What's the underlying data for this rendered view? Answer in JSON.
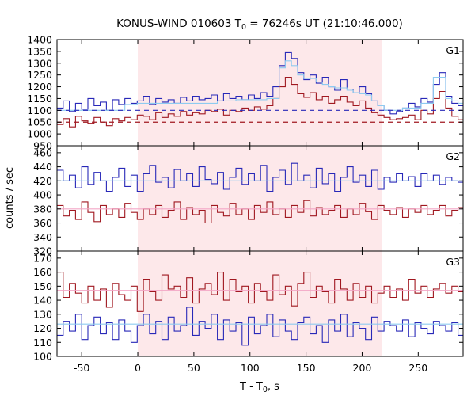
{
  "chart_data": {
    "type": "line",
    "title": "KONUS-WIND 010603 T",
    "title_sub": "0",
    "title_suffix": " = 76246s UT (21:10:46.000)",
    "xlabel": "T - T",
    "xlabel_sub": "0",
    "xlabel_suffix": ", s",
    "ylabel": "counts / sec",
    "xlim": [
      -72,
      290
    ],
    "xticks": [
      -50,
      0,
      50,
      100,
      150,
      200,
      250
    ],
    "highlight": {
      "x0": 0,
      "x1": 218,
      "color": "#fde8ea"
    },
    "colors": {
      "blue": "#2828b8",
      "red": "#a01820",
      "light_blue": "#8ecbf0",
      "pink": "#f3a6c6"
    },
    "bin_edges": [
      -72,
      -66.5,
      -61,
      -55.5,
      -50,
      -44.5,
      -39,
      -33.5,
      -28,
      -22.5,
      -17,
      -11.5,
      -6,
      -0.5,
      5,
      10.5,
      16,
      21.5,
      27,
      32.5,
      38,
      43.5,
      49,
      54.5,
      60,
      65.5,
      71,
      76.5,
      82,
      87.5,
      93,
      98.5,
      104,
      109.5,
      115,
      120.5,
      126,
      131.5,
      137,
      142.5,
      148,
      153.5,
      159,
      164.5,
      170,
      175.5,
      181,
      186.5,
      192,
      197.5,
      203,
      208.5,
      214,
      219.5,
      225,
      230.5,
      236,
      241.5,
      247,
      252.5,
      258,
      263.5,
      269,
      274.5,
      280,
      285.5,
      290
    ],
    "panels": [
      {
        "label": "G1",
        "ylim": [
          950,
          1400
        ],
        "yticks": [
          950,
          1000,
          1050,
          1100,
          1150,
          1200,
          1250,
          1300,
          1350,
          1400
        ],
        "series": [
          {
            "color": "blue",
            "values": [
              1110,
              1140,
              1095,
              1130,
              1105,
              1150,
              1120,
              1135,
              1100,
              1145,
              1125,
              1150,
              1130,
              1140,
              1160,
              1125,
              1150,
              1135,
              1145,
              1130,
              1155,
              1140,
              1160,
              1145,
              1150,
              1165,
              1140,
              1170,
              1150,
              1160,
              1145,
              1165,
              1150,
              1175,
              1160,
              1200,
              1290,
              1345,
              1320,
              1260,
              1230,
              1250,
              1215,
              1240,
              1200,
              1185,
              1230,
              1190,
              1175,
              1200,
              1170,
              1140,
              1120,
              1100,
              1085,
              1095,
              1110,
              1130,
              1115,
              1150,
              1135,
              1210,
              1260,
              1160,
              1130,
              1120
            ]
          },
          {
            "color": "red",
            "values": [
              1040,
              1065,
              1030,
              1075,
              1055,
              1045,
              1070,
              1050,
              1035,
              1065,
              1055,
              1070,
              1060,
              1080,
              1075,
              1060,
              1090,
              1070,
              1085,
              1075,
              1095,
              1080,
              1090,
              1085,
              1100,
              1095,
              1105,
              1080,
              1100,
              1095,
              1110,
              1100,
              1115,
              1105,
              1120,
              1150,
              1200,
              1240,
              1210,
              1170,
              1155,
              1175,
              1145,
              1160,
              1130,
              1145,
              1160,
              1135,
              1120,
              1140,
              1110,
              1090,
              1080,
              1070,
              1060,
              1065,
              1070,
              1080,
              1060,
              1100,
              1085,
              1150,
              1180,
              1110,
              1075,
              1060
            ]
          },
          {
            "color": "light_blue",
            "values": [
              1100,
              1100,
              1100,
              1100,
              1100,
              1100,
              1100,
              1100,
              1100,
              1100,
              1100,
              1125,
              1125,
              1130,
              1130,
              1130,
              1130,
              1130,
              1130,
              1130,
              1130,
              1130,
              1130,
              1130,
              1130,
              1130,
              1140,
              1140,
              1140,
              1145,
              1145,
              1145,
              1145,
              1145,
              1150,
              1150,
              1280,
              1310,
              1290,
              1250,
              1235,
              1235,
              1220,
              1210,
              1200,
              1195,
              1195,
              1185,
              1175,
              1170,
              1165,
              1140,
              1120,
              1100,
              1100,
              1100,
              1110,
              1110,
              1110,
              1130,
              1130,
              1240,
              1240,
              1150,
              1140,
              1130
            ]
          }
        ],
        "reference_lines": [
          {
            "color": "blue",
            "y": 1100
          },
          {
            "color": "red",
            "y": 1050
          }
        ]
      },
      {
        "label": "G2",
        "ylim": [
          320,
          470
        ],
        "yticks": [
          320,
          340,
          360,
          380,
          400,
          420,
          440,
          460
        ],
        "series": [
          {
            "color": "blue",
            "values": [
              435,
              420,
              428,
              410,
              440,
              415,
              432,
              420,
              405,
              425,
              438,
              412,
              428,
              405,
              430,
              442,
              418,
              425,
              410,
              436,
              420,
              430,
              412,
              440,
              422,
              416,
              432,
              408,
              425,
              438,
              415,
              430,
              420,
              442,
              405,
              425,
              435,
              415,
              445,
              420,
              428,
              410,
              438,
              416,
              430,
              405,
              425,
              440,
              418,
              428,
              412,
              435,
              408,
              425,
              418,
              430,
              420,
              426,
              412,
              430,
              420,
              428,
              415,
              425,
              420,
              418
            ]
          },
          {
            "color": "red",
            "values": [
              385,
              370,
              378,
              365,
              390,
              375,
              362,
              385,
              372,
              380,
              368,
              388,
              375,
              365,
              380,
              372,
              385,
              368,
              378,
              390,
              365,
              382,
              372,
              378,
              360,
              385,
              375,
              370,
              388,
              372,
              380,
              365,
              385,
              375,
              390,
              372,
              380,
              368,
              385,
              375,
              392,
              370,
              382,
              372,
              378,
              385,
              368,
              380,
              372,
              388,
              376,
              365,
              385,
              378,
              372,
              382,
              368,
              380,
              375,
              385,
              372,
              378,
              385,
              370,
              378,
              382
            ]
          },
          {
            "color": "light_blue",
            "values": [
              420,
              420,
              420,
              420,
              420,
              420,
              420,
              420,
              420,
              420,
              420,
              420,
              420,
              420,
              420,
              420,
              420,
              420,
              420,
              420,
              420,
              420,
              420,
              420,
              420,
              420,
              420,
              420,
              420,
              420,
              420,
              420,
              420,
              420,
              420,
              420,
              420,
              420,
              420,
              420,
              420,
              420,
              420,
              420,
              420,
              420,
              420,
              420,
              420,
              420,
              420,
              420,
              420,
              420,
              420,
              420,
              420,
              420,
              420,
              420,
              420,
              420,
              420,
              420,
              420,
              420
            ]
          },
          {
            "color": "pink",
            "values": [
              380,
              380,
              380,
              380,
              380,
              380,
              380,
              380,
              380,
              380,
              380,
              380,
              380,
              380,
              380,
              380,
              380,
              380,
              380,
              380,
              380,
              380,
              380,
              380,
              380,
              380,
              380,
              380,
              380,
              380,
              380,
              380,
              380,
              380,
              380,
              380,
              380,
              380,
              380,
              380,
              380,
              380,
              380,
              380,
              380,
              380,
              380,
              380,
              380,
              380,
              380,
              380,
              380,
              380,
              380,
              380,
              380,
              380,
              380,
              380,
              380,
              380,
              380,
              380,
              380,
              380
            ]
          }
        ],
        "reference_lines": []
      },
      {
        "label": "G3",
        "ylim": [
          100,
          175
        ],
        "yticks": [
          100,
          110,
          120,
          130,
          140,
          150,
          160,
          170
        ],
        "series": [
          {
            "color": "red",
            "values": [
              160,
              142,
              152,
              145,
              138,
              150,
              140,
              148,
              135,
              152,
              144,
              140,
              150,
              132,
              155,
              146,
              140,
              158,
              148,
              150,
              142,
              156,
              138,
              148,
              152,
              144,
              160,
              140,
              155,
              146,
              150,
              138,
              152,
              146,
              140,
              158,
              144,
              150,
              136,
              152,
              160,
              142,
              150,
              146,
              138,
              155,
              148,
              140,
              152,
              142,
              150,
              138,
              145,
              150,
              142,
              148,
              140,
              155,
              145,
              150,
              142,
              148,
              152,
              145,
              150,
              146
            ]
          },
          {
            "color": "blue",
            "values": [
              115,
              125,
              118,
              130,
              112,
              122,
              128,
              116,
              124,
              112,
              126,
              118,
              110,
              122,
              130,
              116,
              125,
              112,
              128,
              118,
              122,
              135,
              115,
              125,
              120,
              130,
              112,
              126,
              118,
              124,
              108,
              128,
              116,
              122,
              130,
              114,
              126,
              118,
              112,
              124,
              128,
              116,
              122,
              110,
              126,
              118,
              130,
              114,
              124,
              120,
              112,
              128,
              118,
              125,
              122,
              118,
              126,
              114,
              124,
              120,
              116,
              125,
              122,
              118,
              124,
              115
            ]
          },
          {
            "color": "light_blue",
            "values": [
              123,
              123,
              123,
              123,
              123,
              123,
              123,
              123,
              123,
              123,
              123,
              123,
              123,
              123,
              123,
              123,
              123,
              123,
              123,
              123,
              123,
              123,
              123,
              123,
              123,
              123,
              123,
              123,
              123,
              123,
              123,
              123,
              123,
              123,
              123,
              123,
              123,
              123,
              123,
              123,
              123,
              123,
              123,
              123,
              123,
              123,
              123,
              123,
              123,
              123,
              123,
              123,
              123,
              123,
              123,
              123,
              123,
              123,
              123,
              123,
              123,
              123,
              123,
              123,
              123,
              123
            ]
          },
          {
            "color": "pink",
            "values": [
              147,
              147,
              147,
              147,
              147,
              147,
              147,
              147,
              147,
              147,
              147,
              147,
              147,
              147,
              147,
              147,
              147,
              147,
              147,
              147,
              147,
              147,
              147,
              147,
              147,
              147,
              147,
              147,
              147,
              147,
              147,
              147,
              147,
              147,
              147,
              147,
              147,
              147,
              147,
              147,
              147,
              147,
              147,
              147,
              147,
              147,
              147,
              147,
              147,
              147,
              147,
              147,
              147,
              147,
              147,
              147,
              147,
              147,
              147,
              147,
              147,
              147,
              147,
              147,
              147,
              147
            ]
          }
        ],
        "reference_lines": []
      }
    ]
  }
}
